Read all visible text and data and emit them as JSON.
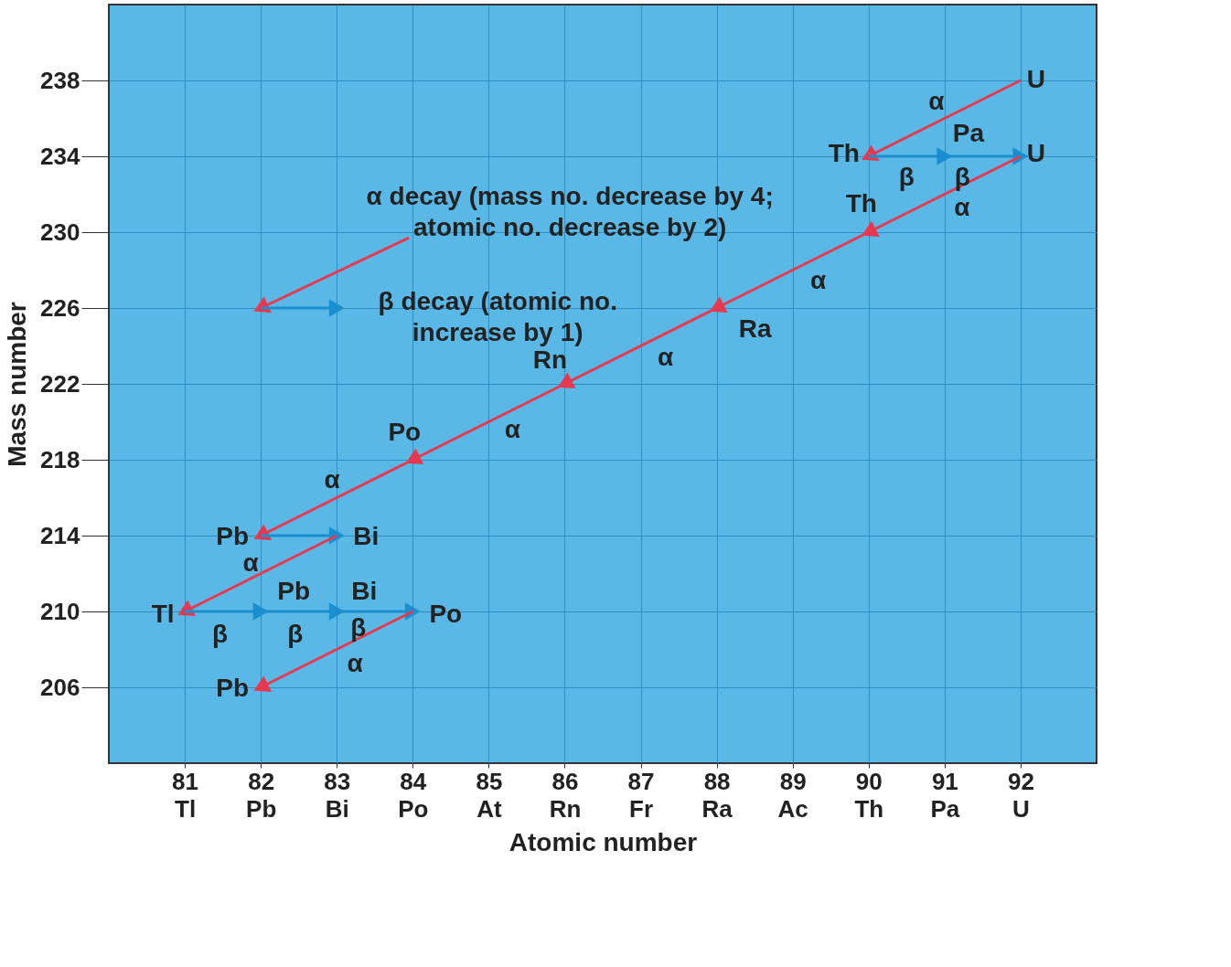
{
  "chart_data": {
    "type": "line",
    "xlabel": "Atomic number",
    "ylabel": "Mass number",
    "xlim": [
      80,
      93
    ],
    "ylim": [
      202,
      242
    ],
    "xticks": [
      {
        "value": 81,
        "label": "81\nTl"
      },
      {
        "value": 82,
        "label": "82\nPb"
      },
      {
        "value": 83,
        "label": "83\nBi"
      },
      {
        "value": 84,
        "label": "84\nPo"
      },
      {
        "value": 85,
        "label": "85\nAt"
      },
      {
        "value": 86,
        "label": "86\nRn"
      },
      {
        "value": 87,
        "label": "87\nFr"
      },
      {
        "value": 88,
        "label": "88\nRa"
      },
      {
        "value": 89,
        "label": "89\nAc"
      },
      {
        "value": 90,
        "label": "90\nTh"
      },
      {
        "value": 91,
        "label": "91\nPa"
      },
      {
        "value": 92,
        "label": "92\nU"
      }
    ],
    "yticks": [
      206,
      210,
      214,
      218,
      222,
      226,
      230,
      234,
      238
    ],
    "grid": true,
    "marker": "triangle",
    "line_style": "solid",
    "series": [
      {
        "color": "#e8384f",
        "x": [
          92,
          90
        ],
        "values": [
          238,
          234
        ]
      },
      {
        "color": "#1a8fd0",
        "x": [
          90,
          91,
          92
        ],
        "values": [
          234,
          234,
          234
        ]
      },
      {
        "color": "#e8384f",
        "x": [
          92,
          90,
          88,
          86,
          84,
          82
        ],
        "values": [
          234,
          230,
          226,
          222,
          218,
          214
        ]
      },
      {
        "color": "#1a8fd0",
        "x": [
          82,
          83
        ],
        "values": [
          214,
          214
        ]
      },
      {
        "color": "#e8384f",
        "x": [
          83,
          81
        ],
        "values": [
          214,
          210
        ]
      },
      {
        "color": "#1a8fd0",
        "x": [
          81,
          82,
          83,
          84
        ],
        "values": [
          210,
          210,
          210,
          210
        ]
      },
      {
        "color": "#e8384f",
        "x": [
          84,
          82
        ],
        "values": [
          210,
          206
        ]
      },
      {
        "color": "#e8384f",
        "x": [
          83.95,
          82
        ],
        "values": [
          229.7,
          226
        ]
      },
      {
        "color": "#1a8fd0",
        "x": [
          82,
          83
        ],
        "values": [
          226,
          226
        ]
      }
    ],
    "annotations": [
      {
        "text": "U",
        "x": 92,
        "y": 238
      },
      {
        "text": "α",
        "x": 91,
        "y": 236
      },
      {
        "text": "Th",
        "x": 90,
        "y": 234
      },
      {
        "text": "Pa",
        "x": 91,
        "y": 234
      },
      {
        "text": "U",
        "x": 92,
        "y": 234
      },
      {
        "text": "β",
        "x": 90.5,
        "y": 234
      },
      {
        "text": "β",
        "x": 91.5,
        "y": 234
      },
      {
        "text": "Th",
        "x": 90,
        "y": 230
      },
      {
        "text": "α",
        "x": 91,
        "y": 232
      },
      {
        "text": "α",
        "x": 89,
        "y": 228
      },
      {
        "text": "Ra",
        "x": 88,
        "y": 226
      },
      {
        "text": "Rn",
        "x": 86,
        "y": 222
      },
      {
        "text": "α",
        "x": 87,
        "y": 224
      },
      {
        "text": "α",
        "x": 85,
        "y": 220
      },
      {
        "text": "Po",
        "x": 84,
        "y": 218
      },
      {
        "text": "α",
        "x": 83,
        "y": 216
      },
      {
        "text": "Pb",
        "x": 82,
        "y": 214
      },
      {
        "text": "Bi",
        "x": 83,
        "y": 214
      },
      {
        "text": "α",
        "x": 82,
        "y": 212
      },
      {
        "text": "Tl",
        "x": 81,
        "y": 210
      },
      {
        "text": "Pb",
        "x": 82,
        "y": 210
      },
      {
        "text": "Bi",
        "x": 83,
        "y": 210
      },
      {
        "text": "Po",
        "x": 84,
        "y": 210
      },
      {
        "text": "β",
        "x": 81.5,
        "y": 210
      },
      {
        "text": "β",
        "x": 82.5,
        "y": 210
      },
      {
        "text": "β",
        "x": 83.5,
        "y": 210
      },
      {
        "text": "α",
        "x": 83,
        "y": 208
      },
      {
        "text": "Pb",
        "x": 82,
        "y": 206
      },
      {
        "text": "α decay (mass no. decrease by 4;\natomic no. decrease by 2)",
        "x": 83.95,
        "y": 229.7
      },
      {
        "text": "β decay (atomic no.\nincrease by 1)",
        "x": 83,
        "y": 226
      }
    ]
  }
}
